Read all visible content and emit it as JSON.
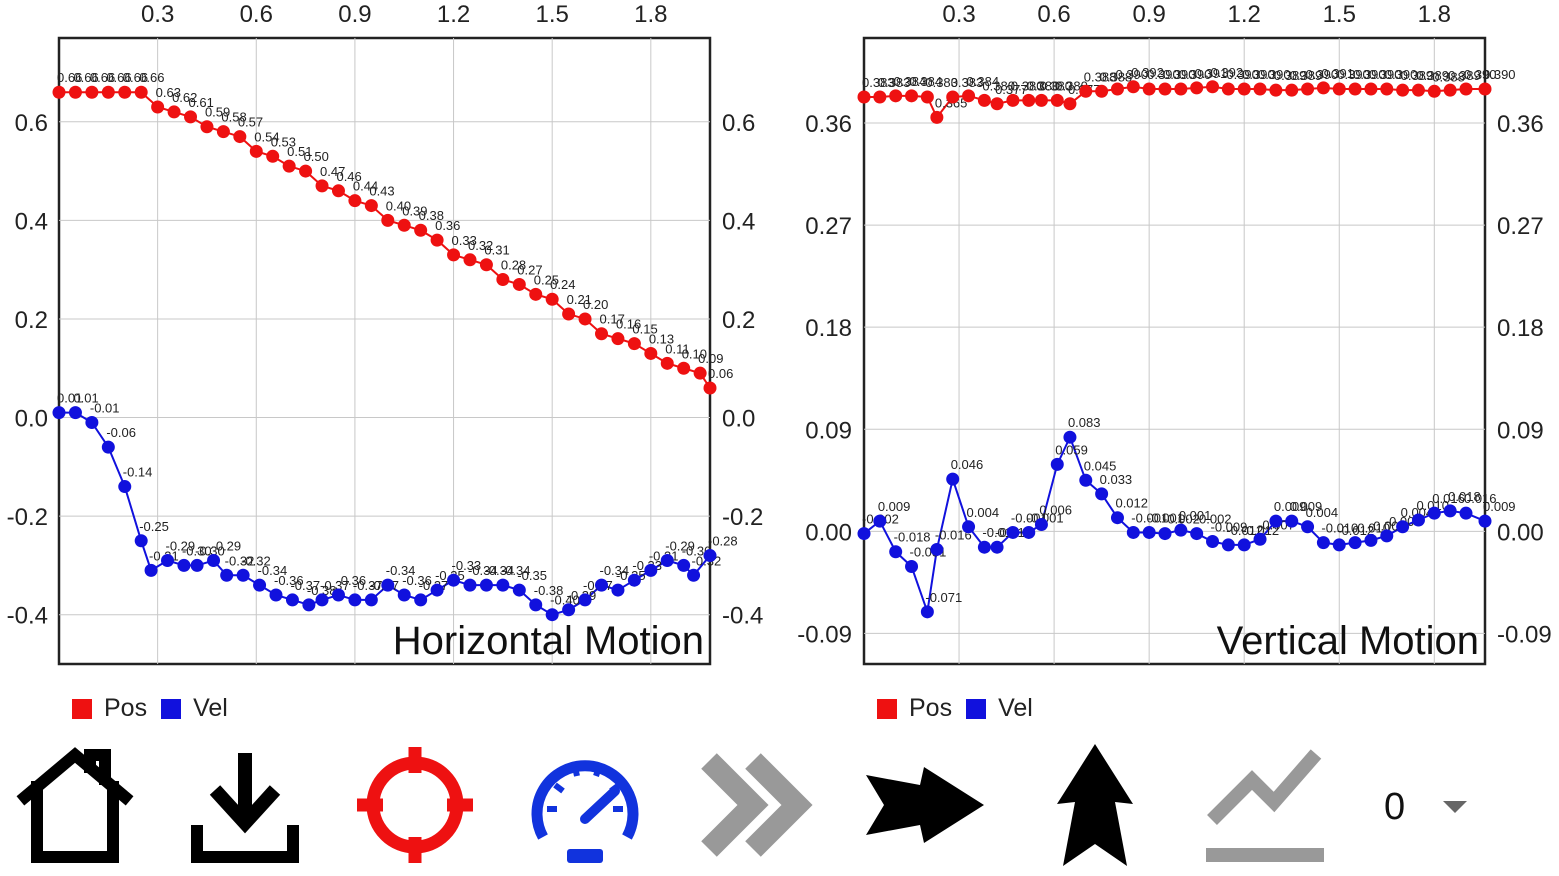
{
  "colors": {
    "pos": "#ee1111",
    "vel": "#1111dd",
    "grid": "#c8c8c8",
    "frame": "#222222"
  },
  "legend": {
    "pos_label": "Pos",
    "vel_label": "Vel"
  },
  "toolbar": {
    "home_icon": "home-icon",
    "download_icon": "download-icon",
    "target_icon": "crosshair-icon",
    "speed_icon": "speedometer-icon",
    "fast_forward_icon": "double-chevron-right-icon",
    "right_arrow_icon": "arrow-right-icon",
    "up_arrow_icon": "arrow-up-icon",
    "trend_icon": "trend-line-icon",
    "counter_value": "0"
  },
  "chart_data": [
    {
      "type": "line",
      "title": "Horizontal Motion",
      "xlim": [
        0.0,
        1.98
      ],
      "ylim": [
        -0.5,
        0.77
      ],
      "x_ticks": [
        "0.3",
        "0.6",
        "0.9",
        "1.2",
        "1.5",
        "1.8"
      ],
      "y_ticks": [
        "0.6",
        "0.4",
        "0.2",
        "0.0",
        "-0.2",
        "-0.4"
      ],
      "series": [
        {
          "name": "Pos",
          "x": [
            0,
            0.05,
            0.1,
            0.15,
            0.2,
            0.25,
            0.3,
            0.35,
            0.4,
            0.45,
            0.5,
            0.55,
            0.6,
            0.65,
            0.7,
            0.75,
            0.8,
            0.85,
            0.9,
            0.95,
            1.0,
            1.05,
            1.1,
            1.15,
            1.2,
            1.25,
            1.3,
            1.35,
            1.4,
            1.45,
            1.5,
            1.55,
            1.6,
            1.65,
            1.7,
            1.75,
            1.8,
            1.85,
            1.9,
            1.95,
            1.98
          ],
          "values": [
            0.66,
            0.66,
            0.66,
            0.66,
            0.66,
            0.66,
            0.63,
            0.62,
            0.61,
            0.59,
            0.58,
            0.57,
            0.54,
            0.53,
            0.51,
            0.5,
            0.47,
            0.46,
            0.44,
            0.43,
            0.4,
            0.39,
            0.38,
            0.36,
            0.33,
            0.32,
            0.31,
            0.28,
            0.27,
            0.25,
            0.24,
            0.21,
            0.2,
            0.17,
            0.16,
            0.15,
            0.13,
            0.11,
            0.1,
            0.09,
            0.06
          ],
          "labels": [
            "0.66",
            "0.66",
            "0.66",
            "0.66",
            "0.66",
            "0.66",
            "0.63",
            "0.62",
            "0.61",
            "0.59",
            "0.58",
            "0.57",
            "0.54",
            "0.53",
            "0.51",
            "0.50",
            "0.47",
            "0.46",
            "0.44",
            "0.43",
            "0.40",
            "0.39",
            "0.38",
            "0.36",
            "0.33",
            "0.32",
            "0.31",
            "0.28",
            "0.27",
            "0.25",
            "0.24",
            "0.21",
            "0.20",
            "0.17",
            "0.16",
            "0.15",
            "0.13",
            "0.11",
            "0.10",
            "0.09",
            "0.06"
          ]
        },
        {
          "name": "Vel",
          "x": [
            0,
            0.05,
            0.1,
            0.15,
            0.2,
            0.25,
            0.28,
            0.33,
            0.38,
            0.42,
            0.47,
            0.51,
            0.56,
            0.61,
            0.66,
            0.71,
            0.76,
            0.8,
            0.85,
            0.9,
            0.95,
            1.0,
            1.05,
            1.1,
            1.15,
            1.2,
            1.25,
            1.3,
            1.35,
            1.4,
            1.45,
            1.5,
            1.55,
            1.6,
            1.65,
            1.7,
            1.75,
            1.8,
            1.85,
            1.9,
            1.93,
            1.98
          ],
          "values": [
            0.01,
            0.01,
            -0.01,
            -0.06,
            -0.14,
            -0.25,
            -0.31,
            -0.29,
            -0.3,
            -0.3,
            -0.29,
            -0.32,
            -0.32,
            -0.34,
            -0.36,
            -0.37,
            -0.38,
            -0.37,
            -0.36,
            -0.37,
            -0.37,
            -0.34,
            -0.36,
            -0.37,
            -0.35,
            -0.33,
            -0.34,
            -0.34,
            -0.34,
            -0.35,
            -0.38,
            -0.4,
            -0.39,
            -0.37,
            -0.34,
            -0.35,
            -0.33,
            -0.31,
            -0.29,
            -0.3,
            -0.32,
            -0.28
          ],
          "labels": [
            "0.01",
            "0.01",
            "-0.01",
            "-0.06",
            "-0.14",
            "-0.25",
            "-0.31",
            "-0.29",
            "-0.30",
            "-0.30",
            "-0.29",
            "-0.32",
            "-0.32",
            "-0.34",
            "-0.36",
            "-0.37",
            "-0.38",
            "-0.37",
            "-0.36",
            "-0.37",
            "-0.37",
            "-0.34",
            "-0.36",
            "-0.37",
            "-0.35",
            "-0.33",
            "-0.34",
            "-0.34",
            "-0.34",
            "-0.35",
            "-0.38",
            "-0.40",
            "-0.39",
            "-0.37",
            "-0.34",
            "-0.35",
            "-0.33",
            "-0.31",
            "-0.29",
            "-0.30",
            "-0.32",
            "-0.28"
          ]
        }
      ],
      "legend": "bottom-left",
      "grid": true
    },
    {
      "type": "line",
      "title": "Vertical Motion",
      "xlim": [
        0.0,
        1.96
      ],
      "ylim": [
        -0.117,
        0.435
      ],
      "x_ticks": [
        "0.3",
        "0.6",
        "0.9",
        "1.2",
        "1.5",
        "1.8"
      ],
      "y_ticks": [
        "0.36",
        "0.27",
        "0.18",
        "0.09",
        "0.00",
        "-0.09"
      ],
      "series": [
        {
          "name": "Pos",
          "x": [
            0,
            0.05,
            0.1,
            0.15,
            0.2,
            0.23,
            0.28,
            0.33,
            0.38,
            0.42,
            0.47,
            0.52,
            0.56,
            0.61,
            0.65,
            0.7,
            0.75,
            0.8,
            0.85,
            0.9,
            0.95,
            1.0,
            1.05,
            1.1,
            1.15,
            1.2,
            1.25,
            1.3,
            1.35,
            1.4,
            1.45,
            1.5,
            1.55,
            1.6,
            1.65,
            1.7,
            1.75,
            1.8,
            1.85,
            1.9,
            1.96
          ],
          "values": [
            0.383,
            0.383,
            0.384,
            0.384,
            0.383,
            0.365,
            0.383,
            0.384,
            0.38,
            0.377,
            0.38,
            0.38,
            0.38,
            0.38,
            0.377,
            0.388,
            0.388,
            0.39,
            0.392,
            0.39,
            0.39,
            0.39,
            0.391,
            0.392,
            0.39,
            0.39,
            0.39,
            0.389,
            0.389,
            0.39,
            0.391,
            0.39,
            0.39,
            0.39,
            0.39,
            0.389,
            0.389,
            0.388,
            0.389,
            0.39,
            0.39
          ],
          "labels": [
            "0.383",
            "0.383",
            "0.384",
            "0.384",
            "0.383",
            "0.365",
            "0.383",
            "0.384",
            "0.380",
            "0.377",
            "0.380",
            "0.380",
            "0.380",
            "0.380",
            "0.377",
            "0.388",
            "0.388",
            "0.390",
            "0.392",
            "0.390",
            "0.390",
            "0.390",
            "0.391",
            "0.392",
            "0.390",
            "0.390",
            "0.390",
            "0.389",
            "0.389",
            "0.390",
            "0.391",
            "0.390",
            "0.390",
            "0.390",
            "0.390",
            "0.389",
            "0.389",
            "0.388",
            "0.389",
            "0.390",
            "0.390"
          ]
        },
        {
          "name": "Vel",
          "x": [
            0,
            0.05,
            0.1,
            0.15,
            0.2,
            0.23,
            0.28,
            0.33,
            0.38,
            0.42,
            0.47,
            0.52,
            0.56,
            0.61,
            0.65,
            0.7,
            0.75,
            0.8,
            0.85,
            0.9,
            0.95,
            1.0,
            1.05,
            1.1,
            1.15,
            1.2,
            1.25,
            1.3,
            1.35,
            1.4,
            1.45,
            1.5,
            1.55,
            1.6,
            1.65,
            1.7,
            1.75,
            1.8,
            1.85,
            1.9,
            1.96
          ],
          "values": [
            -0.002,
            0.009,
            -0.018,
            -0.031,
            -0.071,
            -0.016,
            0.046,
            0.004,
            -0.014,
            -0.014,
            -0.001,
            -0.001,
            0.006,
            0.059,
            0.083,
            0.045,
            0.033,
            0.012,
            -0.001,
            -0.001,
            -0.002,
            0.001,
            -0.002,
            -0.009,
            -0.012,
            -0.012,
            -0.007,
            0.009,
            0.009,
            0.004,
            -0.01,
            -0.012,
            -0.01,
            -0.008,
            -0.004,
            0.004,
            0.01,
            0.016,
            0.018,
            0.016,
            0.009
          ],
          "labels": [
            "-0.002",
            "0.009",
            "-0.018",
            "-0.031",
            "-0.071",
            "-0.016",
            "0.046",
            "0.004",
            "-0.014",
            "-0.014",
            "-0.001",
            "-0.001",
            "0.006",
            "0.059",
            "0.083",
            "0.045",
            "0.033",
            "0.012",
            "-0.001",
            "-0.001",
            "-0.002",
            "0.001",
            "-0.002",
            "-0.009",
            "-0.012",
            "-0.012",
            "-0.007",
            "0.009",
            "0.009",
            "0.004",
            "-0.010",
            "-0.012",
            "-0.010",
            "-0.008",
            "-0.004",
            "0.004",
            "0.010",
            "0.016",
            "0.018",
            "0.016",
            "0.009"
          ]
        }
      ],
      "legend": "bottom-left",
      "grid": true
    }
  ]
}
